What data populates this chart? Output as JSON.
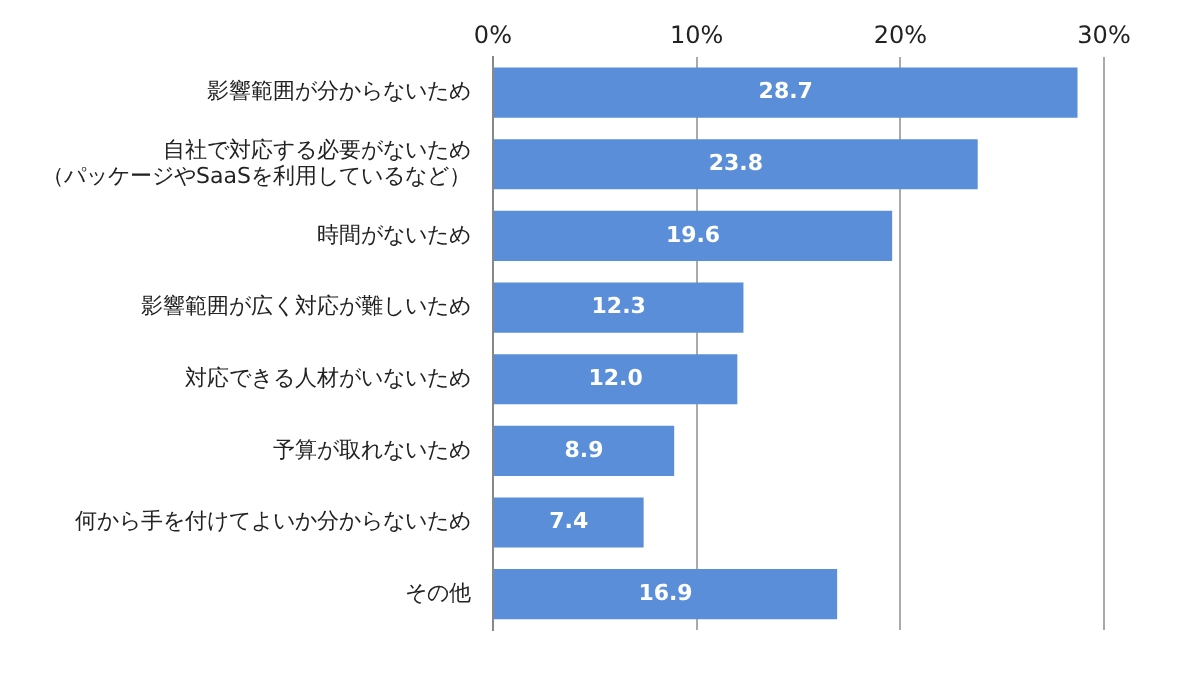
{
  "chart_data": {
    "type": "bar",
    "orientation": "horizontal",
    "categories": [
      "影響範囲が分からないため",
      "自社で対応する必要がないため（パッケージやSaaSを利用しているなど）",
      "時間がないため",
      "影響範囲が広く対応が難しいため",
      "対応できる人材がいないため",
      "予算が取れないため",
      "何から手を付けてよいか分からないため",
      "その他"
    ],
    "values": [
      28.7,
      23.8,
      19.6,
      12.3,
      12.0,
      8.9,
      7.4,
      16.9
    ],
    "color": "#5b8ed8",
    "xlim": [
      0,
      30
    ],
    "xticks": [
      {
        "value": 0,
        "label": "0%"
      },
      {
        "value": 10,
        "label": "10%"
      },
      {
        "value": 20,
        "label": "20%"
      },
      {
        "value": 30,
        "label": "30%"
      }
    ],
    "value_labels": [
      "28.7",
      "23.8",
      "19.6",
      "12.3",
      "12.0",
      "8.9",
      "7.4",
      "16.9"
    ],
    "grid": "x"
  }
}
